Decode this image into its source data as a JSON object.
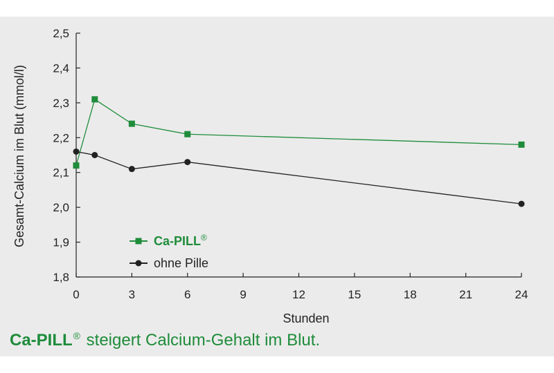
{
  "chart_data": {
    "type": "line",
    "xlabel": "Stunden",
    "ylabel": "Gesamt-Calcium im Blut (mmol/l)",
    "x_ticks": [
      0,
      3,
      6,
      9,
      12,
      15,
      18,
      21,
      24
    ],
    "x_tick_labels": [
      "0",
      "3",
      "6",
      "9",
      "12",
      "15",
      "18",
      "21",
      "24"
    ],
    "xlim": [
      0,
      24
    ],
    "y_ticks": [
      1.8,
      1.9,
      2.0,
      2.1,
      2.2,
      2.3,
      2.4,
      2.5
    ],
    "y_tick_labels": [
      "1,8",
      "1,9",
      "2,0",
      "2,1",
      "2,2",
      "2,3",
      "2,4",
      "2,5"
    ],
    "ylim": [
      1.8,
      2.5
    ],
    "grid": false,
    "legend_position": "lower-left",
    "series": [
      {
        "name": "Ca-PILL",
        "name_sup": "®",
        "color": "#1e8c3a",
        "marker": "square",
        "x": [
          0,
          1,
          3,
          6,
          24
        ],
        "y": [
          2.12,
          2.31,
          2.24,
          2.21,
          2.18
        ]
      },
      {
        "name": "ohne Pille",
        "color": "#222222",
        "marker": "circle",
        "x": [
          0,
          1,
          3,
          6,
          24
        ],
        "y": [
          2.16,
          2.15,
          2.11,
          2.13,
          2.01
        ]
      }
    ]
  },
  "caption": {
    "brand": "Ca-PILL",
    "sup": "®",
    "text": " steigert Calcium-Gehalt im Blut.",
    "color": "#1e8c3a"
  }
}
